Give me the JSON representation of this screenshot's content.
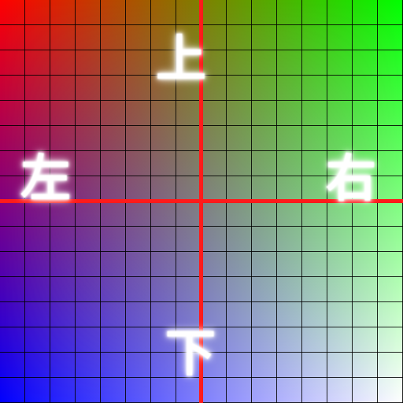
{
  "labels": {
    "top": "上",
    "bottom": "下",
    "left": "左",
    "right": "右"
  },
  "colors": {
    "top_left": "#ff0000",
    "top_right": "#00ff00",
    "bottom_left": "#0000ff",
    "bottom_right": "#ffffff",
    "center": "#007f7f",
    "axis": "#ff1a1a",
    "grid": "#000000",
    "label": "#ffffff"
  },
  "grid": {
    "columns": 16,
    "rows": 16
  }
}
